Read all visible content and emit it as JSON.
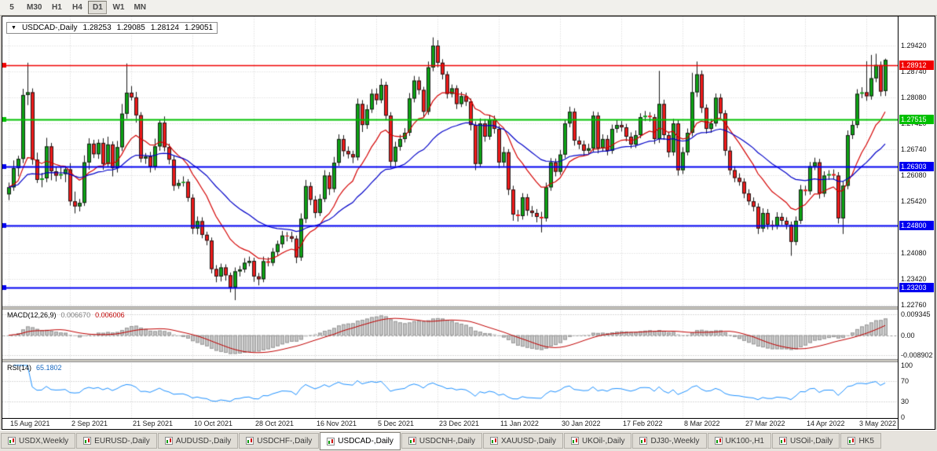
{
  "toolbar": {
    "timeframes": [
      {
        "label": "5",
        "active": false
      },
      {
        "label": "M30",
        "active": false
      },
      {
        "label": "H1",
        "active": false
      },
      {
        "label": "H4",
        "active": false
      },
      {
        "label": "D1",
        "active": true
      },
      {
        "label": "W1",
        "active": false
      },
      {
        "label": "MN",
        "active": false
      }
    ]
  },
  "title": {
    "arrow": "▼",
    "symbol": "USDCAD-,Daily",
    "open": "1.28253",
    "high": "1.29085",
    "low": "1.28124",
    "close": "1.29051"
  },
  "price_axis": {
    "ticks": [
      "1.29420",
      "1.28740",
      "1.28080",
      "1.27420",
      "1.26740",
      "1.26080",
      "1.25420",
      "1.24760",
      "1.24080",
      "1.23420",
      "1.22760"
    ]
  },
  "lines": [
    {
      "price": 1.28912,
      "label": "1.28912",
      "color": "#f00000",
      "width": 1.6
    },
    {
      "price": 1.27515,
      "label": "1.27515",
      "color": "#00c000",
      "width": 2
    },
    {
      "price": 1.26303,
      "label": "1.26303",
      "color": "#0000f0",
      "width": 2
    },
    {
      "price": 1.248,
      "label": "1.24800",
      "color": "#0000f0",
      "width": 2
    },
    {
      "price": 1.23203,
      "label": "1.23203",
      "color": "#0000f0",
      "width": 2
    }
  ],
  "macd": {
    "name": "MACD(12,26,9)",
    "value_main": "0.006670",
    "value_signal": "0.006006",
    "axis": [
      "0.009345",
      "0.00",
      "-0.008902"
    ],
    "scale_max": 0.009345,
    "scale_min": -0.008902
  },
  "rsi": {
    "name": "RSI(14)",
    "value": "65.1802",
    "axis": [
      "100",
      "70",
      "30",
      "0"
    ],
    "levels": [
      70,
      30
    ],
    "period": 14
  },
  "indicators": {
    "ma_fast_period": 13,
    "ma_slow_period": 34,
    "macd_fast": 12,
    "macd_slow": 26,
    "macd_signal": 9
  },
  "date_axis": {
    "tick_every": 13,
    "labels": [
      "15 Aug 2021",
      "2 Sep 2021",
      "21 Sep 2021",
      "10 Oct 2021",
      "28 Oct 2021",
      "16 Nov 2021",
      "5 Dec 2021",
      "23 Dec 2021",
      "11 Jan 2022",
      "30 Jan 2022",
      "17 Feb 2022",
      "8 Mar 2022",
      "27 Mar 2022",
      "14 Apr 2022",
      "3 May 2022"
    ]
  },
  "colors": {
    "up": "#0da314",
    "down": "#ef1a1a",
    "candle_edge": "#1a1a1a",
    "ma_fast": "#d40000",
    "ma_slow": "#0000c8",
    "grid": "#d2d2d2",
    "level_dotted": "#b4b4b4",
    "separator": "#cfccc4",
    "macd_hist_fill": "#c4c4c4",
    "macd_hist_edge": "#9a9a9a",
    "macd_signal": "#c00000",
    "rsi_line": "#1e90ff"
  },
  "chart_data": {
    "type": "candlestick",
    "symbol": "USDCAD-",
    "timeframe": "Daily",
    "candles": [
      [
        1.256,
        1.259,
        1.2545,
        1.2578
      ],
      [
        1.2578,
        1.2647,
        1.2569,
        1.2627
      ],
      [
        1.2627,
        1.2659,
        1.2606,
        1.2651
      ],
      [
        1.2651,
        1.2831,
        1.264,
        1.2815
      ],
      [
        1.2815,
        1.2898,
        1.2789,
        1.2822
      ],
      [
        1.2822,
        1.2832,
        1.2636,
        1.2649
      ],
      [
        1.2649,
        1.2667,
        1.2589,
        1.2597
      ],
      [
        1.2597,
        1.2615,
        1.2578,
        1.2601
      ],
      [
        1.2601,
        1.2705,
        1.2591,
        1.2683
      ],
      [
        1.2683,
        1.2692,
        1.2596,
        1.2619
      ],
      [
        1.2619,
        1.2631,
        1.2593,
        1.2608
      ],
      [
        1.2608,
        1.2632,
        1.2599,
        1.2612
      ],
      [
        1.2612,
        1.2632,
        1.2591,
        1.2624
      ],
      [
        1.2624,
        1.264,
        1.2531,
        1.2542
      ],
      [
        1.2542,
        1.2567,
        1.2511,
        1.2529
      ],
      [
        1.2529,
        1.2548,
        1.2516,
        1.2538
      ],
      [
        1.2538,
        1.266,
        1.253,
        1.2642
      ],
      [
        1.2642,
        1.2704,
        1.2623,
        1.269
      ],
      [
        1.269,
        1.27,
        1.2653,
        1.2663
      ],
      [
        1.2663,
        1.2701,
        1.2651,
        1.2692
      ],
      [
        1.2692,
        1.2704,
        1.2623,
        1.2638
      ],
      [
        1.2638,
        1.2708,
        1.2629,
        1.2688
      ],
      [
        1.2688,
        1.2696,
        1.2606,
        1.2627
      ],
      [
        1.2627,
        1.2697,
        1.2616,
        1.2681
      ],
      [
        1.2681,
        1.2792,
        1.2671,
        1.2767
      ],
      [
        1.2767,
        1.2896,
        1.2754,
        1.2821
      ],
      [
        1.2821,
        1.2838,
        1.2801,
        1.2809
      ],
      [
        1.2809,
        1.2823,
        1.2744,
        1.2763
      ],
      [
        1.2763,
        1.2771,
        1.2642,
        1.2652
      ],
      [
        1.2652,
        1.2666,
        1.2638,
        1.2657
      ],
      [
        1.2657,
        1.2669,
        1.2616,
        1.2631
      ],
      [
        1.2631,
        1.2703,
        1.2622,
        1.2683
      ],
      [
        1.2683,
        1.2752,
        1.2672,
        1.2744
      ],
      [
        1.2744,
        1.276,
        1.267,
        1.2681
      ],
      [
        1.2681,
        1.269,
        1.2637,
        1.2649
      ],
      [
        1.2649,
        1.2659,
        1.2569,
        1.2582
      ],
      [
        1.2582,
        1.2598,
        1.2574,
        1.2589
      ],
      [
        1.2589,
        1.2606,
        1.258,
        1.2592
      ],
      [
        1.2592,
        1.2599,
        1.2541,
        1.2551
      ],
      [
        1.2551,
        1.256,
        1.2458,
        1.2472
      ],
      [
        1.2472,
        1.2503,
        1.2457,
        1.2491
      ],
      [
        1.2491,
        1.2501,
        1.2447,
        1.2456
      ],
      [
        1.2456,
        1.2464,
        1.2429,
        1.2441
      ],
      [
        1.2441,
        1.2449,
        1.2357,
        1.2368
      ],
      [
        1.2368,
        1.2378,
        1.2334,
        1.2349
      ],
      [
        1.2349,
        1.2382,
        1.2336,
        1.2372
      ],
      [
        1.2372,
        1.238,
        1.2338,
        1.2352
      ],
      [
        1.2352,
        1.2359,
        1.2308,
        1.2321
      ],
      [
        1.2321,
        1.2372,
        1.2288,
        1.2362
      ],
      [
        1.2362,
        1.2376,
        1.2349,
        1.2367
      ],
      [
        1.2367,
        1.2396,
        1.2359,
        1.2384
      ],
      [
        1.2384,
        1.24,
        1.2375,
        1.2389
      ],
      [
        1.2389,
        1.2397,
        1.2335,
        1.2349
      ],
      [
        1.2349,
        1.2358,
        1.2326,
        1.2342
      ],
      [
        1.2342,
        1.24,
        1.2334,
        1.2388
      ],
      [
        1.2388,
        1.2398,
        1.2375,
        1.2384
      ],
      [
        1.2384,
        1.2422,
        1.2376,
        1.2412
      ],
      [
        1.2412,
        1.2441,
        1.2402,
        1.2432
      ],
      [
        1.2432,
        1.2466,
        1.2422,
        1.2454
      ],
      [
        1.2454,
        1.2463,
        1.2439,
        1.2452
      ],
      [
        1.2452,
        1.2464,
        1.2437,
        1.2446
      ],
      [
        1.2446,
        1.2454,
        1.2383,
        1.2398
      ],
      [
        1.2398,
        1.2511,
        1.2389,
        1.2497
      ],
      [
        1.2497,
        1.2597,
        1.2486,
        1.2581
      ],
      [
        1.2581,
        1.2591,
        1.2532,
        1.2546
      ],
      [
        1.2546,
        1.2556,
        1.2499,
        1.2512
      ],
      [
        1.2512,
        1.256,
        1.2504,
        1.2548
      ],
      [
        1.2548,
        1.2622,
        1.254,
        1.2608
      ],
      [
        1.2608,
        1.2617,
        1.2558,
        1.2574
      ],
      [
        1.2574,
        1.2656,
        1.2565,
        1.2641
      ],
      [
        1.2641,
        1.2714,
        1.2633,
        1.2702
      ],
      [
        1.2702,
        1.2712,
        1.2657,
        1.2671
      ],
      [
        1.2671,
        1.2683,
        1.2652,
        1.2663
      ],
      [
        1.2663,
        1.2672,
        1.264,
        1.2655
      ],
      [
        1.2655,
        1.2806,
        1.2647,
        1.2792
      ],
      [
        1.2792,
        1.2802,
        1.272,
        1.2738
      ],
      [
        1.2738,
        1.279,
        1.2728,
        1.2778
      ],
      [
        1.2778,
        1.283,
        1.2769,
        1.2818
      ],
      [
        1.2818,
        1.2832,
        1.279,
        1.2802
      ],
      [
        1.2802,
        1.2857,
        1.2794,
        1.2841
      ],
      [
        1.2841,
        1.2849,
        1.275,
        1.2762
      ],
      [
        1.2762,
        1.2771,
        1.2628,
        1.2644
      ],
      [
        1.2644,
        1.2695,
        1.2632,
        1.2682
      ],
      [
        1.2682,
        1.2713,
        1.2672,
        1.2702
      ],
      [
        1.2702,
        1.273,
        1.2693,
        1.2718
      ],
      [
        1.2718,
        1.282,
        1.271,
        1.2806
      ],
      [
        1.2806,
        1.2864,
        1.2796,
        1.2852
      ],
      [
        1.2852,
        1.2862,
        1.2816,
        1.2828
      ],
      [
        1.2828,
        1.2836,
        1.2758,
        1.2772
      ],
      [
        1.2772,
        1.2901,
        1.2764,
        1.2886
      ],
      [
        1.2886,
        1.2963,
        1.2876,
        1.2942
      ],
      [
        1.2942,
        1.2956,
        1.2886,
        1.2898
      ],
      [
        1.2898,
        1.2907,
        1.2855,
        1.2868
      ],
      [
        1.2868,
        1.2876,
        1.2806,
        1.2818
      ],
      [
        1.2818,
        1.2842,
        1.2809,
        1.2832
      ],
      [
        1.2832,
        1.284,
        1.2779,
        1.2792
      ],
      [
        1.2792,
        1.2823,
        1.2784,
        1.2812
      ],
      [
        1.2812,
        1.2821,
        1.2787,
        1.2798
      ],
      [
        1.2798,
        1.2806,
        1.2724,
        1.2738
      ],
      [
        1.2738,
        1.2747,
        1.2622,
        1.2638
      ],
      [
        1.2638,
        1.2755,
        1.2629,
        1.2742
      ],
      [
        1.2742,
        1.2753,
        1.2695,
        1.2708
      ],
      [
        1.2708,
        1.2764,
        1.27,
        1.2752
      ],
      [
        1.2752,
        1.2762,
        1.2716,
        1.2728
      ],
      [
        1.2728,
        1.2736,
        1.2627,
        1.2642
      ],
      [
        1.2642,
        1.2682,
        1.2632,
        1.2668
      ],
      [
        1.2668,
        1.2676,
        1.2558,
        1.2572
      ],
      [
        1.2572,
        1.2582,
        1.2492,
        1.2508
      ],
      [
        1.2508,
        1.252,
        1.249,
        1.2504
      ],
      [
        1.2504,
        1.2563,
        1.2495,
        1.2552
      ],
      [
        1.2552,
        1.2561,
        1.2505,
        1.2518
      ],
      [
        1.2518,
        1.253,
        1.2502,
        1.2512
      ],
      [
        1.2512,
        1.2522,
        1.2488,
        1.2502
      ],
      [
        1.2502,
        1.2515,
        1.2462,
        1.2498
      ],
      [
        1.2498,
        1.259,
        1.249,
        1.2578
      ],
      [
        1.2578,
        1.2653,
        1.2569,
        1.2642
      ],
      [
        1.2642,
        1.2652,
        1.2606,
        1.2618
      ],
      [
        1.2618,
        1.2674,
        1.261,
        1.2662
      ],
      [
        1.2662,
        1.2752,
        1.2653,
        1.2742
      ],
      [
        1.2742,
        1.2785,
        1.2732,
        1.2772
      ],
      [
        1.2772,
        1.2781,
        1.2685,
        1.2698
      ],
      [
        1.2698,
        1.2709,
        1.2676,
        1.2688
      ],
      [
        1.2688,
        1.2698,
        1.2658,
        1.2672
      ],
      [
        1.2672,
        1.269,
        1.2662,
        1.2678
      ],
      [
        1.2678,
        1.2773,
        1.267,
        1.2762
      ],
      [
        1.2762,
        1.2771,
        1.2665,
        1.2678
      ],
      [
        1.2678,
        1.2714,
        1.2669,
        1.2702
      ],
      [
        1.2702,
        1.2712,
        1.266,
        1.2672
      ],
      [
        1.2672,
        1.2739,
        1.2664,
        1.2728
      ],
      [
        1.2728,
        1.2751,
        1.2718,
        1.2738
      ],
      [
        1.2738,
        1.2748,
        1.2721,
        1.2732
      ],
      [
        1.2732,
        1.2741,
        1.2696,
        1.2708
      ],
      [
        1.2708,
        1.2719,
        1.2678,
        1.2688
      ],
      [
        1.2688,
        1.2724,
        1.2679,
        1.2712
      ],
      [
        1.2712,
        1.2768,
        1.2704,
        1.2758
      ],
      [
        1.2758,
        1.2774,
        1.2748,
        1.2762
      ],
      [
        1.2762,
        1.2771,
        1.2747,
        1.2758
      ],
      [
        1.2758,
        1.2766,
        1.2689,
        1.2702
      ],
      [
        1.2702,
        1.2877,
        1.2692,
        1.2792
      ],
      [
        1.2792,
        1.2803,
        1.27,
        1.2712
      ],
      [
        1.2712,
        1.2721,
        1.2655,
        1.2668
      ],
      [
        1.2668,
        1.2754,
        1.2659,
        1.2742
      ],
      [
        1.2742,
        1.2752,
        1.2608,
        1.2622
      ],
      [
        1.2622,
        1.2681,
        1.2612,
        1.2668
      ],
      [
        1.2668,
        1.2729,
        1.266,
        1.2718
      ],
      [
        1.2718,
        1.2872,
        1.2709,
        1.2822
      ],
      [
        1.2822,
        1.2901,
        1.281,
        1.2868
      ],
      [
        1.2868,
        1.2878,
        1.2769,
        1.2782
      ],
      [
        1.2782,
        1.2791,
        1.2716,
        1.2728
      ],
      [
        1.2728,
        1.2754,
        1.2718,
        1.2742
      ],
      [
        1.2742,
        1.2819,
        1.2734,
        1.2808
      ],
      [
        1.2808,
        1.2818,
        1.2756,
        1.2768
      ],
      [
        1.2768,
        1.2776,
        1.2659,
        1.2672
      ],
      [
        1.2672,
        1.2683,
        1.261,
        1.2622
      ],
      [
        1.2622,
        1.2632,
        1.2591,
        1.2602
      ],
      [
        1.2602,
        1.2614,
        1.2582,
        1.2592
      ],
      [
        1.2592,
        1.2601,
        1.255,
        1.2562
      ],
      [
        1.2562,
        1.2573,
        1.2532,
        1.2542
      ],
      [
        1.2542,
        1.2552,
        1.2516,
        1.2528
      ],
      [
        1.2528,
        1.2537,
        1.2458,
        1.2472
      ],
      [
        1.2472,
        1.2524,
        1.2463,
        1.2512
      ],
      [
        1.2512,
        1.2522,
        1.247,
        1.2482
      ],
      [
        1.2482,
        1.2493,
        1.2468,
        1.2478
      ],
      [
        1.2478,
        1.2514,
        1.247,
        1.2502
      ],
      [
        1.2502,
        1.2512,
        1.2481,
        1.2492
      ],
      [
        1.2492,
        1.2501,
        1.247,
        1.2482
      ],
      [
        1.2482,
        1.249,
        1.2402,
        1.2438
      ],
      [
        1.2438,
        1.2503,
        1.2429,
        1.2492
      ],
      [
        1.2492,
        1.2584,
        1.2484,
        1.2572
      ],
      [
        1.2572,
        1.2582,
        1.2557,
        1.2568
      ],
      [
        1.2568,
        1.2643,
        1.2559,
        1.2632
      ],
      [
        1.2632,
        1.2654,
        1.2622,
        1.2642
      ],
      [
        1.2642,
        1.2651,
        1.2549,
        1.2562
      ],
      [
        1.2562,
        1.2619,
        1.2553,
        1.2608
      ],
      [
        1.2608,
        1.2622,
        1.2597,
        1.2612
      ],
      [
        1.2612,
        1.2624,
        1.2598,
        1.2608
      ],
      [
        1.2608,
        1.2617,
        1.2485,
        1.2498
      ],
      [
        1.2498,
        1.2593,
        1.2458,
        1.2582
      ],
      [
        1.2582,
        1.2724,
        1.2573,
        1.2712
      ],
      [
        1.2712,
        1.2749,
        1.2702,
        1.2738
      ],
      [
        1.2738,
        1.283,
        1.273,
        1.2818
      ],
      [
        1.2818,
        1.2835,
        1.2807,
        1.2822
      ],
      [
        1.2822,
        1.2902,
        1.28,
        1.2812
      ],
      [
        1.2812,
        1.2918,
        1.2803,
        1.2858
      ],
      [
        1.2858,
        1.2921,
        1.2848,
        1.2892
      ],
      [
        1.2892,
        1.2901,
        1.2812,
        1.2824
      ],
      [
        1.28253,
        1.29085,
        1.28124,
        1.29051
      ]
    ]
  },
  "tabs": [
    {
      "label": "USDX,Weekly",
      "active": false
    },
    {
      "label": "EURUSD-,Daily",
      "active": false
    },
    {
      "label": "AUDUSD-,Daily",
      "active": false
    },
    {
      "label": "USDCHF-,Daily",
      "active": false
    },
    {
      "label": "USDCAD-,Daily",
      "active": true
    },
    {
      "label": "USDCNH-,Daily",
      "active": false
    },
    {
      "label": "XAUUSD-,Daily",
      "active": false
    },
    {
      "label": "UKOil-,Daily",
      "active": false
    },
    {
      "label": "DJ30-,Weekly",
      "active": false
    },
    {
      "label": "UK100-,H1",
      "active": false
    },
    {
      "label": "USOil-,Daily",
      "active": false
    },
    {
      "label": "HK5",
      "active": false
    }
  ]
}
